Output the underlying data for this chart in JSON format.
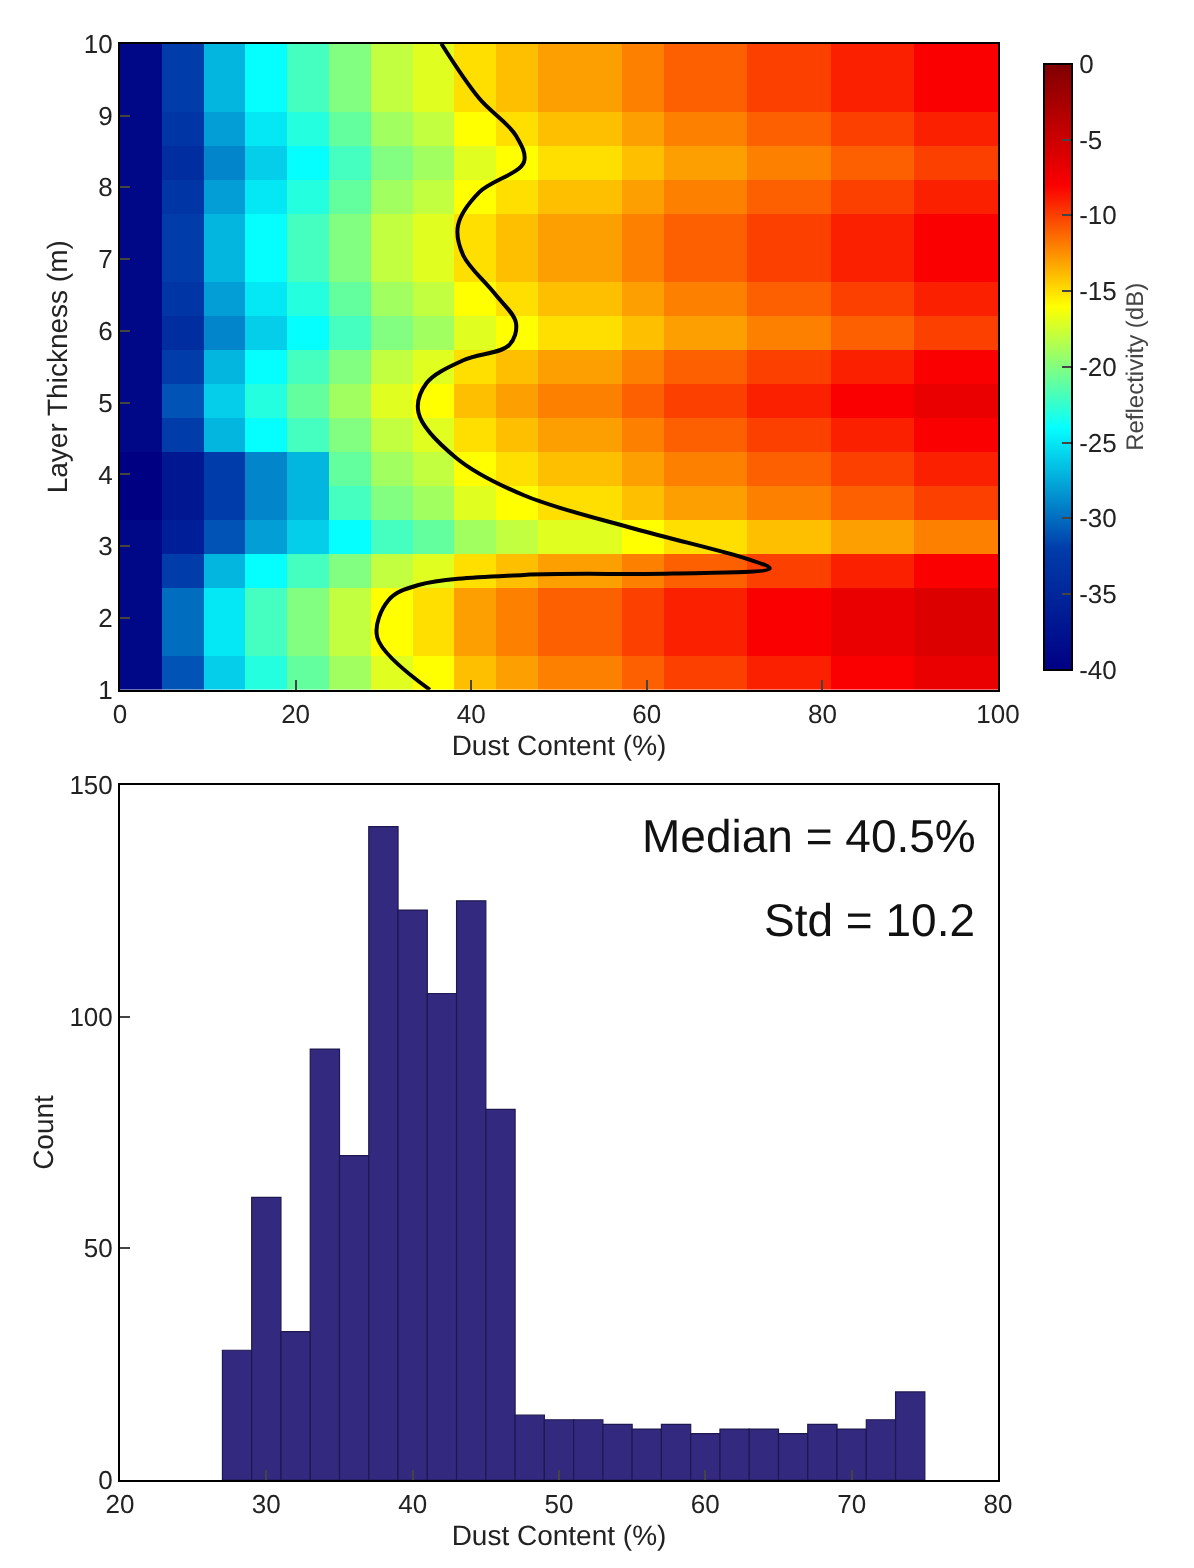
{
  "chart_data": [
    {
      "type": "heatmap",
      "xlabel": "Dust Content (%)",
      "ylabel": "Layer Thickness (m)",
      "clabel": "Reflectivity (dB)",
      "cells": [
        [
          -39,
          -32,
          -27,
          -24,
          -22,
          -20,
          -18,
          -17,
          -15,
          -14,
          -13,
          -13,
          -12,
          -11,
          -11,
          -10,
          -10,
          -9,
          -9,
          -8,
          -8
        ],
        [
          -39,
          -32,
          -27,
          -24,
          -22,
          -20,
          -18,
          -17,
          -15,
          -14,
          -13,
          -13,
          -12,
          -11,
          -11,
          -10,
          -10,
          -9,
          -9,
          -8,
          -8
        ],
        [
          -39,
          -33,
          -28,
          -25,
          -23,
          -21,
          -19,
          -18,
          -16,
          -15,
          -14,
          -14,
          -13,
          -12,
          -12,
          -11,
          -11,
          -10,
          -10,
          -9,
          -9
        ],
        [
          -39,
          -34,
          -29,
          -26,
          -24,
          -22,
          -20,
          -19,
          -17,
          -16,
          -15,
          -15,
          -14,
          -13,
          -13,
          -12,
          -12,
          -11,
          -11,
          -10,
          -10
        ],
        [
          -39,
          -33,
          -28,
          -25,
          -23,
          -21,
          -19,
          -18,
          -16,
          -15,
          -14,
          -14,
          -13,
          -12,
          -12,
          -11,
          -11,
          -10,
          -10,
          -9,
          -9
        ],
        [
          -39,
          -32,
          -27,
          -24,
          -22,
          -20,
          -18,
          -17,
          -15,
          -14,
          -13,
          -13,
          -12,
          -11,
          -11,
          -10,
          -10,
          -9,
          -9,
          -8,
          -8
        ],
        [
          -39,
          -32,
          -27,
          -24,
          -22,
          -20,
          -18,
          -17,
          -15,
          -14,
          -13,
          -13,
          -12,
          -11,
          -11,
          -10,
          -10,
          -9,
          -9,
          -8,
          -8
        ],
        [
          -39,
          -33,
          -28,
          -25,
          -23,
          -21,
          -19,
          -18,
          -16,
          -15,
          -14,
          -14,
          -13,
          -12,
          -12,
          -11,
          -11,
          -10,
          -10,
          -9,
          -9
        ],
        [
          -39,
          -34,
          -29,
          -26,
          -24,
          -22,
          -20,
          -19,
          -17,
          -16,
          -15,
          -15,
          -14,
          -13,
          -13,
          -12,
          -12,
          -11,
          -11,
          -10,
          -10
        ],
        [
          -39,
          -32,
          -27,
          -24,
          -22,
          -20,
          -18,
          -17,
          -15,
          -14,
          -13,
          -13,
          -12,
          -11,
          -11,
          -10,
          -10,
          -9,
          -9,
          -8,
          -8
        ],
        [
          -39,
          -31,
          -26,
          -23,
          -21,
          -19,
          -17,
          -16,
          -14,
          -13,
          -12,
          -12,
          -11,
          -10,
          -10,
          -9,
          -9,
          -8,
          -8,
          -7,
          -7
        ],
        [
          -39,
          -32,
          -27,
          -24,
          -22,
          -20,
          -18,
          -17,
          -15,
          -14,
          -13,
          -13,
          -12,
          -11,
          -11,
          -10,
          -10,
          -9,
          -9,
          -8,
          -8
        ],
        [
          -40,
          -37,
          -32,
          -29,
          -27,
          -21,
          -19,
          -18,
          -16,
          -15,
          -14,
          -14,
          -13,
          -12,
          -12,
          -11,
          -11,
          -10,
          -10,
          -9,
          -9
        ],
        [
          -40,
          -37,
          -32,
          -29,
          -27,
          -22,
          -20,
          -19,
          -17,
          -16,
          -15,
          -15,
          -14,
          -13,
          -13,
          -12,
          -12,
          -11,
          -11,
          -10,
          -10
        ],
        [
          -39,
          -36,
          -31,
          -28,
          -26,
          -24,
          -22,
          -21,
          -19,
          -18,
          -17,
          -17,
          -16,
          -15,
          -15,
          -14,
          -14,
          -13,
          -13,
          -12,
          -12
        ],
        [
          -39,
          -32,
          -27,
          -24,
          -22,
          -20,
          -18,
          -17,
          -15,
          -14,
          -13,
          -13,
          -12,
          -11,
          -11,
          -10,
          -10,
          -9,
          -9,
          -8,
          -8
        ],
        [
          -39,
          -30,
          -25,
          -22,
          -20,
          -18,
          -16,
          -15,
          -13,
          -12,
          -11,
          -11,
          -10,
          -9,
          -9,
          -8,
          -8,
          -7,
          -7,
          -6,
          -6
        ],
        [
          -39,
          -30,
          -25,
          -22,
          -20,
          -18,
          -16,
          -15,
          -13,
          -12,
          -11,
          -11,
          -10,
          -9,
          -9,
          -8,
          -8,
          -7,
          -7,
          -6,
          -6
        ],
        [
          -39,
          -31,
          -26,
          -23,
          -21,
          -19,
          -17,
          -16,
          -14,
          -13,
          -12,
          -12,
          -11,
          -10,
          -10,
          -9,
          -9,
          -8,
          -8,
          -7,
          -7
        ]
      ],
      "series": [
        {
          "type": "line",
          "color": "#000000",
          "x": [
            35.3,
            29.3,
            30.6,
            34,
            46,
            63,
            74,
            71.5,
            58.7,
            46,
            38.3,
            34,
            34.9,
            39.1,
            44.3,
            45.1,
            42.6,
            39.1,
            38.5,
            40.9,
            46,
            45.1,
            40.9,
            36.6
          ],
          "values": [
            1,
            1.73,
            2.25,
            2.46,
            2.6,
            2.62,
            2.69,
            2.82,
            3.24,
            3.71,
            4.23,
            4.86,
            5.27,
            5.59,
            5.8,
            6.11,
            6.53,
            7.05,
            7.47,
            7.93,
            8.35,
            8.72,
            9.24,
            10
          ]
        }
      ],
      "xlim": [
        0,
        100
      ],
      "xticks": [
        0,
        20,
        40,
        60,
        80,
        100
      ],
      "ylim": [
        1,
        10
      ],
      "yticks": [
        1,
        2,
        3,
        4,
        5,
        6,
        7,
        8,
        9,
        10
      ],
      "clim": [
        -40,
        0
      ],
      "cticks": [
        -40,
        -35,
        -30,
        -25,
        -20,
        -15,
        -10,
        -5,
        0
      ]
    },
    {
      "type": "histogram",
      "xlabel": "Dust Content (%)",
      "ylabel": "Count",
      "color": "#332a7f",
      "bins": [
        27,
        29,
        31,
        33,
        35,
        37,
        39,
        41,
        43,
        45,
        47,
        49,
        51,
        53,
        55,
        57,
        59,
        61,
        63,
        65,
        67,
        69,
        71,
        73,
        75
      ],
      "values": [
        28,
        61,
        32,
        93,
        70,
        141,
        123,
        105,
        125,
        80,
        14,
        13,
        13,
        12,
        11,
        12,
        10,
        11,
        11,
        10,
        12,
        11,
        13,
        19
      ],
      "xlim": [
        20,
        80
      ],
      "xticks": [
        20,
        30,
        40,
        50,
        60,
        70,
        80
      ],
      "ylim": [
        0,
        150
      ],
      "yticks": [
        0,
        50,
        100,
        150
      ],
      "annotations": [
        "Median = 40.5%",
        "Std = 10.2"
      ]
    }
  ]
}
